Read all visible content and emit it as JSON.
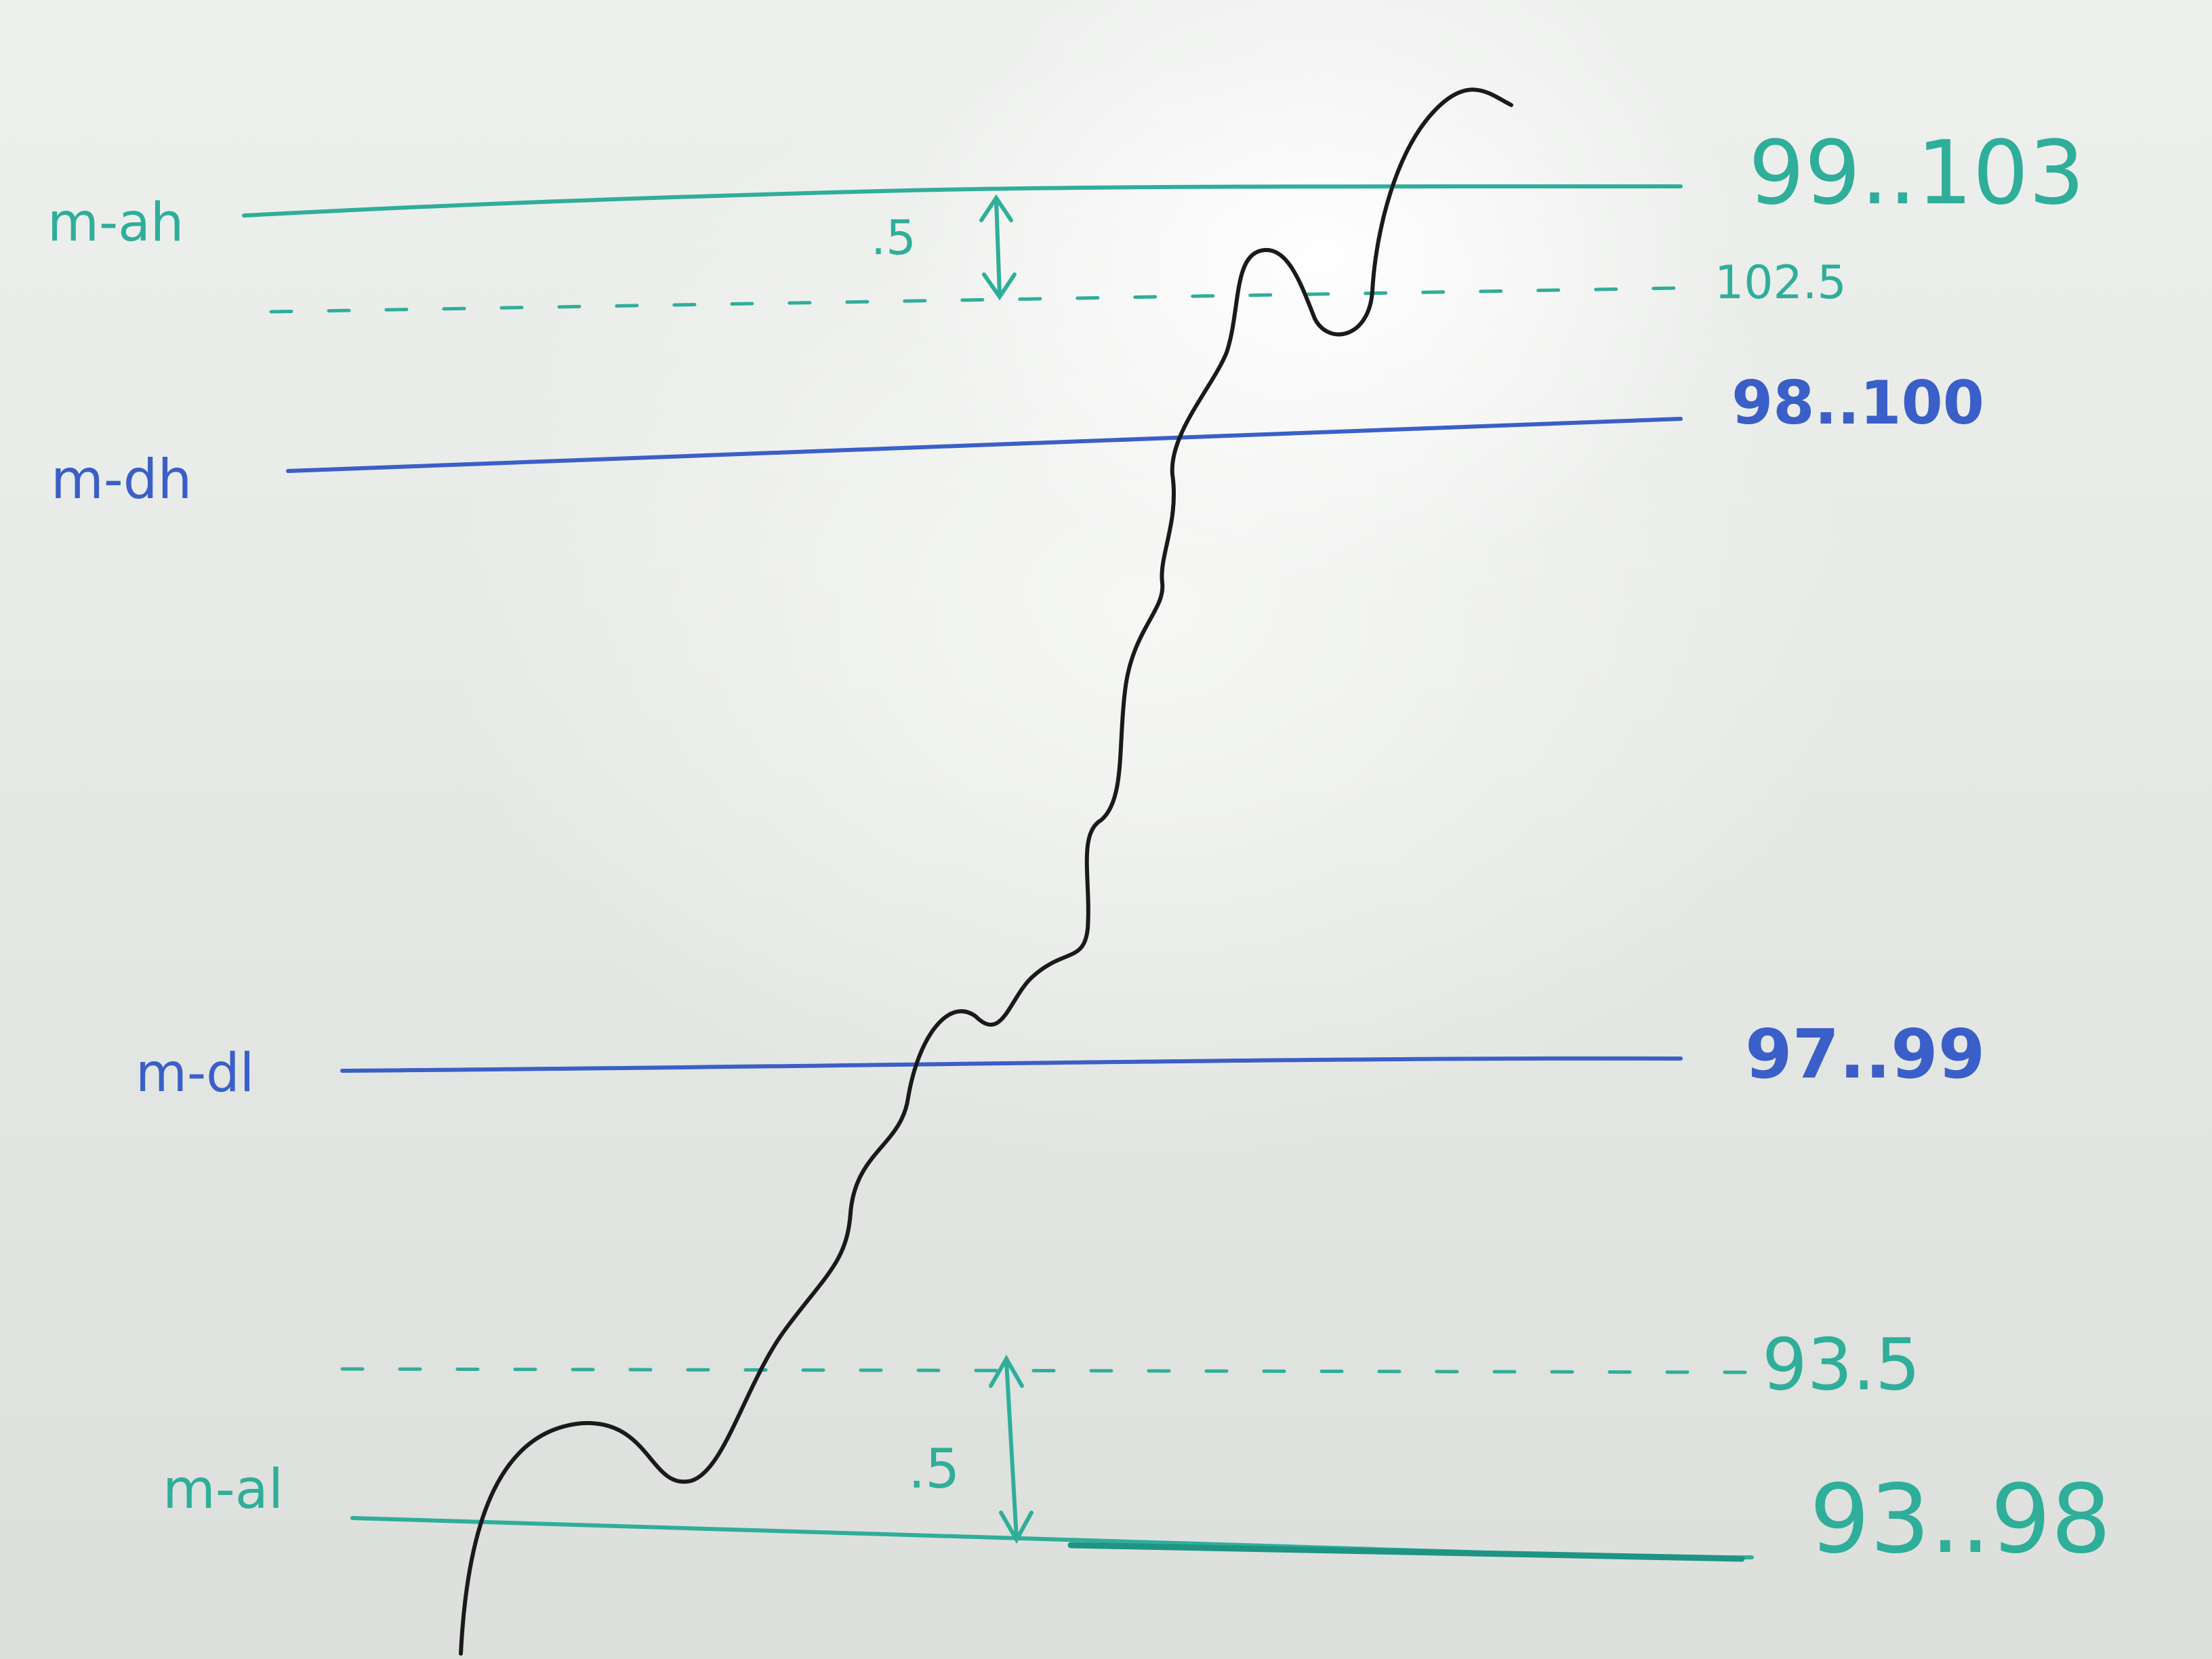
{
  "levels": [
    {
      "key": "m_ah",
      "label": "m-ah",
      "range": "99..103",
      "color": "#2fae9a"
    },
    {
      "key": "upper_dashed",
      "label": "",
      "range": "102.5",
      "color": "#2fae9a"
    },
    {
      "key": "m_dh",
      "label": "m-dh",
      "range": "98..100",
      "color": "#3a5fc8"
    },
    {
      "key": "m_dl",
      "label": "m-dl",
      "range": "97..99",
      "color": "#3a5fc8"
    },
    {
      "key": "lower_dashed",
      "label": "",
      "range": "93.5",
      "color": "#2fae9a"
    },
    {
      "key": "m_al",
      "label": "m-al",
      "range": "93..98",
      "color": "#2fae9a"
    }
  ],
  "gaps": {
    "upper": ".5",
    "lower": ".5"
  },
  "curve_color": "#1a1a1a"
}
